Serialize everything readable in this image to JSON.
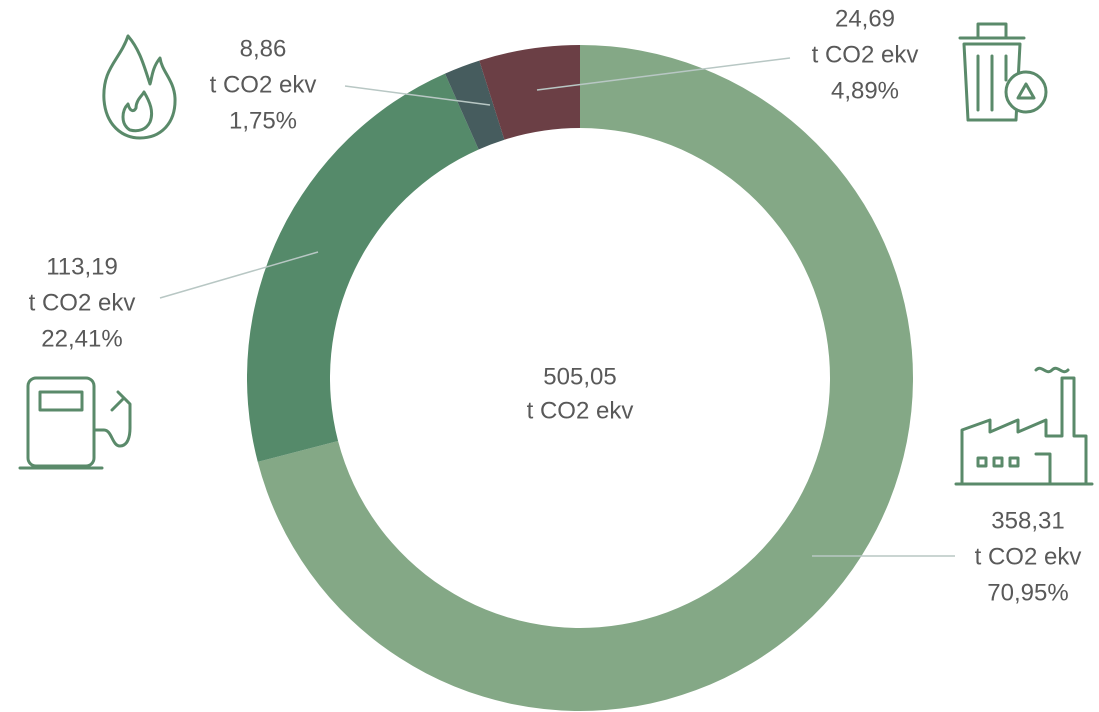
{
  "chart_data": {
    "type": "donut",
    "values": [
      358.31,
      113.19,
      8.86,
      24.69
    ],
    "value_labels": [
      "358,31",
      "113,19",
      "8,86",
      "24,69"
    ],
    "percentages": [
      70.95,
      22.41,
      1.75,
      4.89
    ],
    "percentage_labels": [
      "70,95%",
      "22,41%",
      "1,75%",
      "4,89%"
    ],
    "colors": [
      "#84a886",
      "#558a6a",
      "#465c5e",
      "#6b3f45"
    ],
    "unit": "t CO2 ekv",
    "total": 505.05,
    "total_label": "505,05"
  }
}
